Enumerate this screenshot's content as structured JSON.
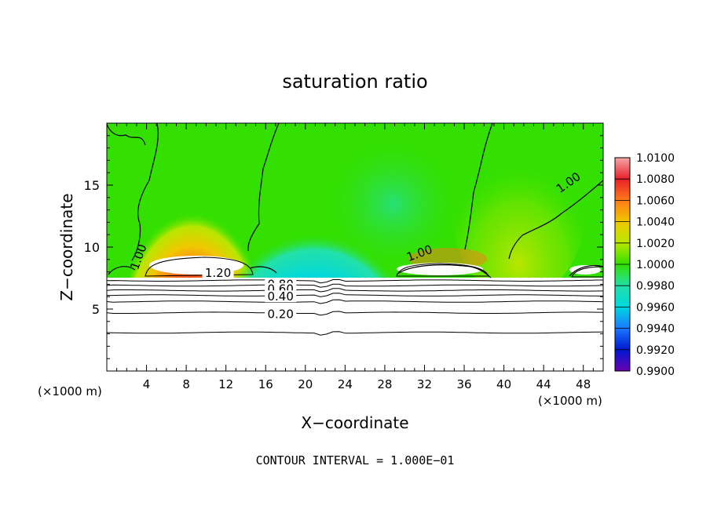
{
  "chart_data": {
    "type": "heatmap",
    "title": "saturation ratio",
    "xlabel": "X−coordinate",
    "ylabel": "Z−coordinate",
    "x_unit_left": "(×1000 m)",
    "x_unit_right": "(×1000 m)",
    "xlim": [
      0,
      50
    ],
    "ylim": [
      0,
      20
    ],
    "x_ticks": [
      4,
      8,
      12,
      16,
      20,
      24,
      28,
      32,
      36,
      40,
      44,
      48
    ],
    "x_tick_labels": [
      "4",
      "8",
      "12",
      "16",
      "20",
      "24",
      "28",
      "32",
      "36",
      "40",
      "44",
      "48"
    ],
    "y_ticks": [
      5,
      10,
      15
    ],
    "y_tick_labels": [
      "5",
      "10",
      "15"
    ],
    "colorbar": {
      "min": 0.99,
      "max": 1.01,
      "labels": [
        "1.0100",
        "1.0080",
        "1.0060",
        "1.0040",
        "1.0020",
        "1.0000",
        "0.9980",
        "0.9960",
        "0.9940",
        "0.9920",
        "0.9900"
      ],
      "colors": [
        "#f4a6a6",
        "#e8202a",
        "#ff7a1a",
        "#f0c800",
        "#b8e600",
        "#33e000",
        "#22e0a8",
        "#00d8e0",
        "#1a78ff",
        "#0018d0",
        "#6a00b0"
      ]
    },
    "contour_labels": [
      {
        "text": "1.20",
        "x": 11.2,
        "z": 7.9
      },
      {
        "text": "0.80",
        "x": 17.5,
        "z": 7.0
      },
      {
        "text": "0.60",
        "x": 17.5,
        "z": 6.6
      },
      {
        "text": "0.40",
        "x": 17.5,
        "z": 6.0
      },
      {
        "text": "0.20",
        "x": 17.5,
        "z": 4.6
      },
      {
        "text": "1.00",
        "x": 3.2,
        "z": 9.2
      },
      {
        "text": "1.00",
        "x": 31.5,
        "z": 9.5
      },
      {
        "text": "1.00",
        "x": 46.5,
        "z": 15.2
      }
    ],
    "contour_levels_z": [
      3.1,
      4.7,
      5.6,
      6.1,
      6.5,
      6.9,
      7.3
    ],
    "footer": "CONTOUR INTERVAL = 1.000E−01"
  }
}
